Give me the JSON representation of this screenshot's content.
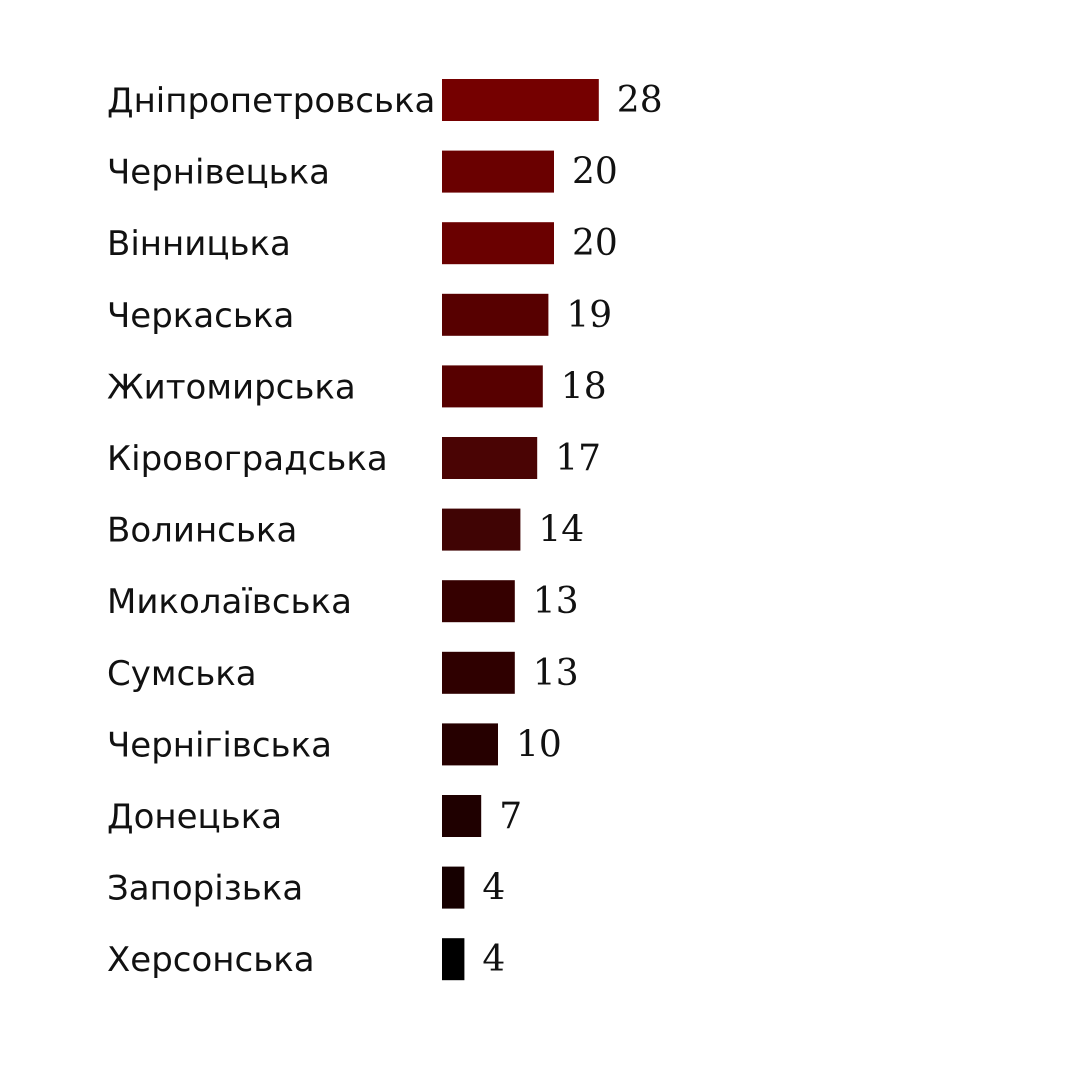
{
  "chart_data": {
    "type": "bar",
    "orientation": "horizontal",
    "categories": [
      "Дніпропетровська",
      "Чернівецька",
      "Вінницька",
      "Черкаська",
      "Житомирська",
      "Кіровоградська",
      "Волинська",
      "Миколаївська",
      "Сумська",
      "Чернігівська",
      "Донецька",
      "Запорізька",
      "Херсонська"
    ],
    "values": [
      28,
      20,
      20,
      19,
      18,
      17,
      14,
      13,
      13,
      10,
      7,
      4,
      4
    ],
    "bar_colors": [
      "#750000",
      "#6a0000",
      "#6a0000",
      "#570000",
      "#570000",
      "#4a0404",
      "#400404",
      "#350000",
      "#2f0000",
      "#260000",
      "#1f0000",
      "#160000",
      "#000000"
    ],
    "title": "",
    "xlabel": "",
    "ylabel": "",
    "grid": false,
    "legend": "none"
  }
}
